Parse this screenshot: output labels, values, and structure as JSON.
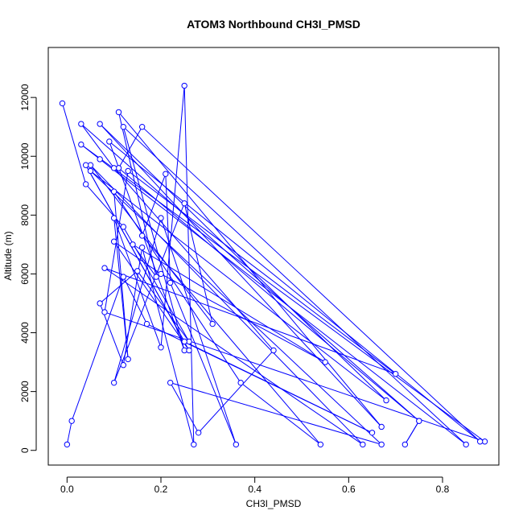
{
  "chart_data": {
    "type": "line",
    "title": "ATOM3 Northbound CH3I_PMSD",
    "xlabel": "CH3I_PMSD",
    "ylabel": "Altitude (m)",
    "xlim": [
      -0.04,
      0.92
    ],
    "ylim": [
      -500,
      13700
    ],
    "xticks": [
      0.0,
      0.2,
      0.4,
      0.6,
      0.8
    ],
    "xtick_labels": [
      "0.0",
      "0.2",
      "0.4",
      "0.6",
      "0.8"
    ],
    "yticks": [
      0,
      2000,
      4000,
      6000,
      8000,
      10000,
      12000
    ],
    "ytick_labels": [
      "0",
      "2000",
      "4000",
      "6000",
      "8000",
      "10000",
      "12000"
    ],
    "grid": false,
    "markers": "open-circle",
    "series": [
      {
        "color": "#0000ff",
        "points": [
          [
            -0.01,
            11800
          ],
          [
            0.04,
            9050
          ],
          [
            0.12,
            7600
          ],
          [
            0.26,
            3700
          ],
          [
            0.15,
            6100
          ],
          [
            0.07,
            5000
          ],
          [
            0.12,
            2900
          ],
          [
            0.16,
            6900
          ],
          [
            0.27,
            200
          ],
          [
            0.25,
            12400
          ],
          [
            0.2,
            3500
          ],
          [
            0.1,
            7900
          ],
          [
            0.13,
            3100
          ],
          [
            0.1,
            8800
          ],
          [
            0.37,
            2300
          ],
          [
            0.54,
            200
          ],
          [
            0.16,
            7300
          ],
          [
            0.21,
            9400
          ],
          [
            0.22,
            5700
          ],
          [
            0.36,
            200
          ],
          [
            0.2,
            7900
          ],
          [
            0.1,
            2300
          ],
          [
            0.25,
            8400
          ],
          [
            0.31,
            4300
          ],
          [
            0.05,
            9700
          ],
          [
            0.63,
            200
          ],
          [
            0.08,
            6200
          ],
          [
            0.7,
            2600
          ],
          [
            0.13,
            9500
          ],
          [
            0.08,
            4700
          ],
          [
            0.89,
            300
          ],
          [
            0.03,
            10400
          ],
          [
            0.07,
            9900
          ],
          [
            0.85,
            200
          ],
          [
            0.12,
            11000
          ],
          [
            0.25,
            3400
          ],
          [
            0.09,
            10500
          ],
          [
            0.88,
            300
          ],
          [
            0.16,
            11000
          ],
          [
            0.11,
            9600
          ],
          [
            0.75,
            1000
          ],
          [
            0.72,
            200
          ],
          [
            0.75,
            1000
          ],
          [
            0.03,
            11100
          ],
          [
            0.1,
            9600
          ],
          [
            0.44,
            3400
          ],
          [
            0.28,
            600
          ],
          [
            0.22,
            2300
          ],
          [
            0.67,
            200
          ],
          [
            0.05,
            9500
          ],
          [
            0.68,
            1700
          ],
          [
            0.07,
            11100
          ],
          [
            0.67,
            800
          ],
          [
            0.11,
            11500
          ],
          [
            0.19,
            5900
          ],
          [
            0.14,
            7000
          ],
          [
            0.55,
            3000
          ],
          [
            0.2,
            6000
          ],
          [
            0.1,
            7100
          ],
          [
            0.26,
            3400
          ],
          [
            0.04,
            9700
          ],
          [
            0.25,
            3700
          ],
          [
            0.65,
            600
          ],
          [
            0.17,
            4300
          ],
          [
            0.12,
            5900
          ],
          [
            0.01,
            1000
          ],
          [
            0.0,
            200
          ]
        ]
      }
    ]
  }
}
